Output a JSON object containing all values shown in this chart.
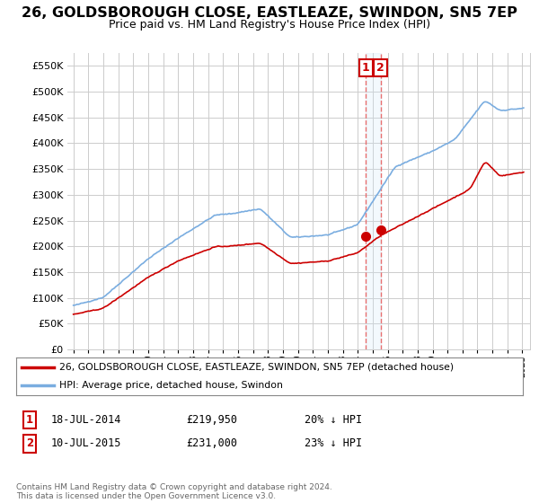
{
  "title": "26, GOLDSBOROUGH CLOSE, EASTLEAZE, SWINDON, SN5 7EP",
  "subtitle": "Price paid vs. HM Land Registry's House Price Index (HPI)",
  "background_color": "#ffffff",
  "grid_color": "#cccccc",
  "ylim": [
    0,
    575000
  ],
  "yticks": [
    0,
    50000,
    100000,
    150000,
    200000,
    250000,
    300000,
    350000,
    400000,
    450000,
    500000,
    550000
  ],
  "ytick_labels": [
    "£0",
    "£50K",
    "£100K",
    "£150K",
    "£200K",
    "£250K",
    "£300K",
    "£350K",
    "£400K",
    "£450K",
    "£500K",
    "£550K"
  ],
  "xlim_start": 1994.6,
  "xlim_end": 2025.5,
  "legend_line1": "26, GOLDSBOROUGH CLOSE, EASTLEAZE, SWINDON, SN5 7EP (detached house)",
  "legend_line2": "HPI: Average price, detached house, Swindon",
  "line1_color": "#cc0000",
  "line2_color": "#7aade0",
  "transaction1_price": 219950,
  "transaction1_year": 2014.54,
  "transaction2_price": 231000,
  "transaction2_year": 2015.52,
  "transaction1_date": "18-JUL-2014",
  "transaction2_date": "10-JUL-2015",
  "shade_color": "#d0e8f8",
  "copyright": "Contains HM Land Registry data © Crown copyright and database right 2024.\nThis data is licensed under the Open Government Licence v3.0."
}
